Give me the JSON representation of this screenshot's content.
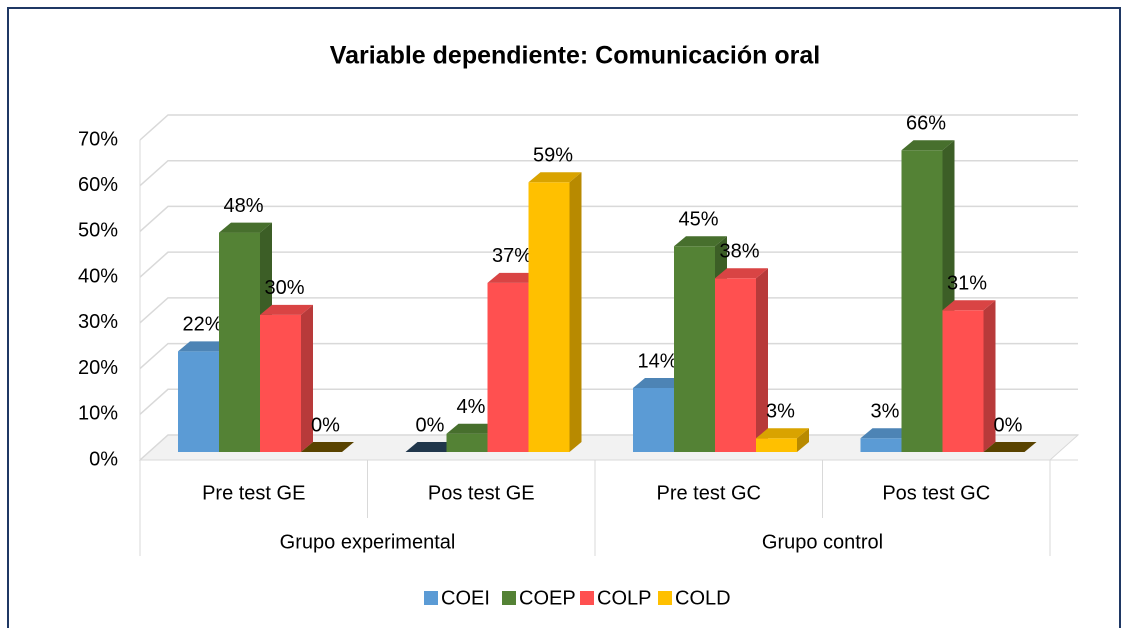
{
  "chart_data": {
    "type": "bar3d",
    "title": "Variable dependiente: Comunicación oral",
    "categories": [
      "Pre test GE",
      "Pos test GE",
      "Pre test GC",
      "Pos test GC"
    ],
    "groups": [
      {
        "label": "Grupo experimental",
        "categories": [
          "Pre test GE",
          "Pos test GE"
        ]
      },
      {
        "label": "Grupo control",
        "categories": [
          "Pre test GC",
          "Pos test GC"
        ]
      }
    ],
    "series": [
      {
        "name": "COEI",
        "color": "#5b9bd5",
        "values": [
          22,
          0,
          14,
          3
        ],
        "value_labels": [
          "22%",
          "0%",
          "14%",
          "3%"
        ]
      },
      {
        "name": "COEP",
        "color": "#548235",
        "values": [
          48,
          4,
          45,
          66
        ],
        "value_labels": [
          "48%",
          "4%",
          "45%",
          "66%"
        ]
      },
      {
        "name": "COLP",
        "color": "#ff5050",
        "values": [
          30,
          37,
          38,
          31
        ],
        "value_labels": [
          "30%",
          "37%",
          "38%",
          "31%"
        ]
      },
      {
        "name": "COLD",
        "color": "#ffc000",
        "values": [
          0,
          59,
          3,
          0
        ],
        "value_labels": [
          "0%",
          "59%",
          "3%",
          "0%"
        ]
      }
    ],
    "ylim": [
      0,
      70
    ],
    "yticks": [
      {
        "value": 0,
        "label": "0%"
      },
      {
        "value": 10,
        "label": "10%"
      },
      {
        "value": 20,
        "label": "20%"
      },
      {
        "value": 30,
        "label": "30%"
      },
      {
        "value": 40,
        "label": "40%"
      },
      {
        "value": 50,
        "label": "50%"
      },
      {
        "value": 60,
        "label": "60%"
      },
      {
        "value": 70,
        "label": "70%"
      }
    ],
    "grid": true,
    "legend": "bottom"
  }
}
